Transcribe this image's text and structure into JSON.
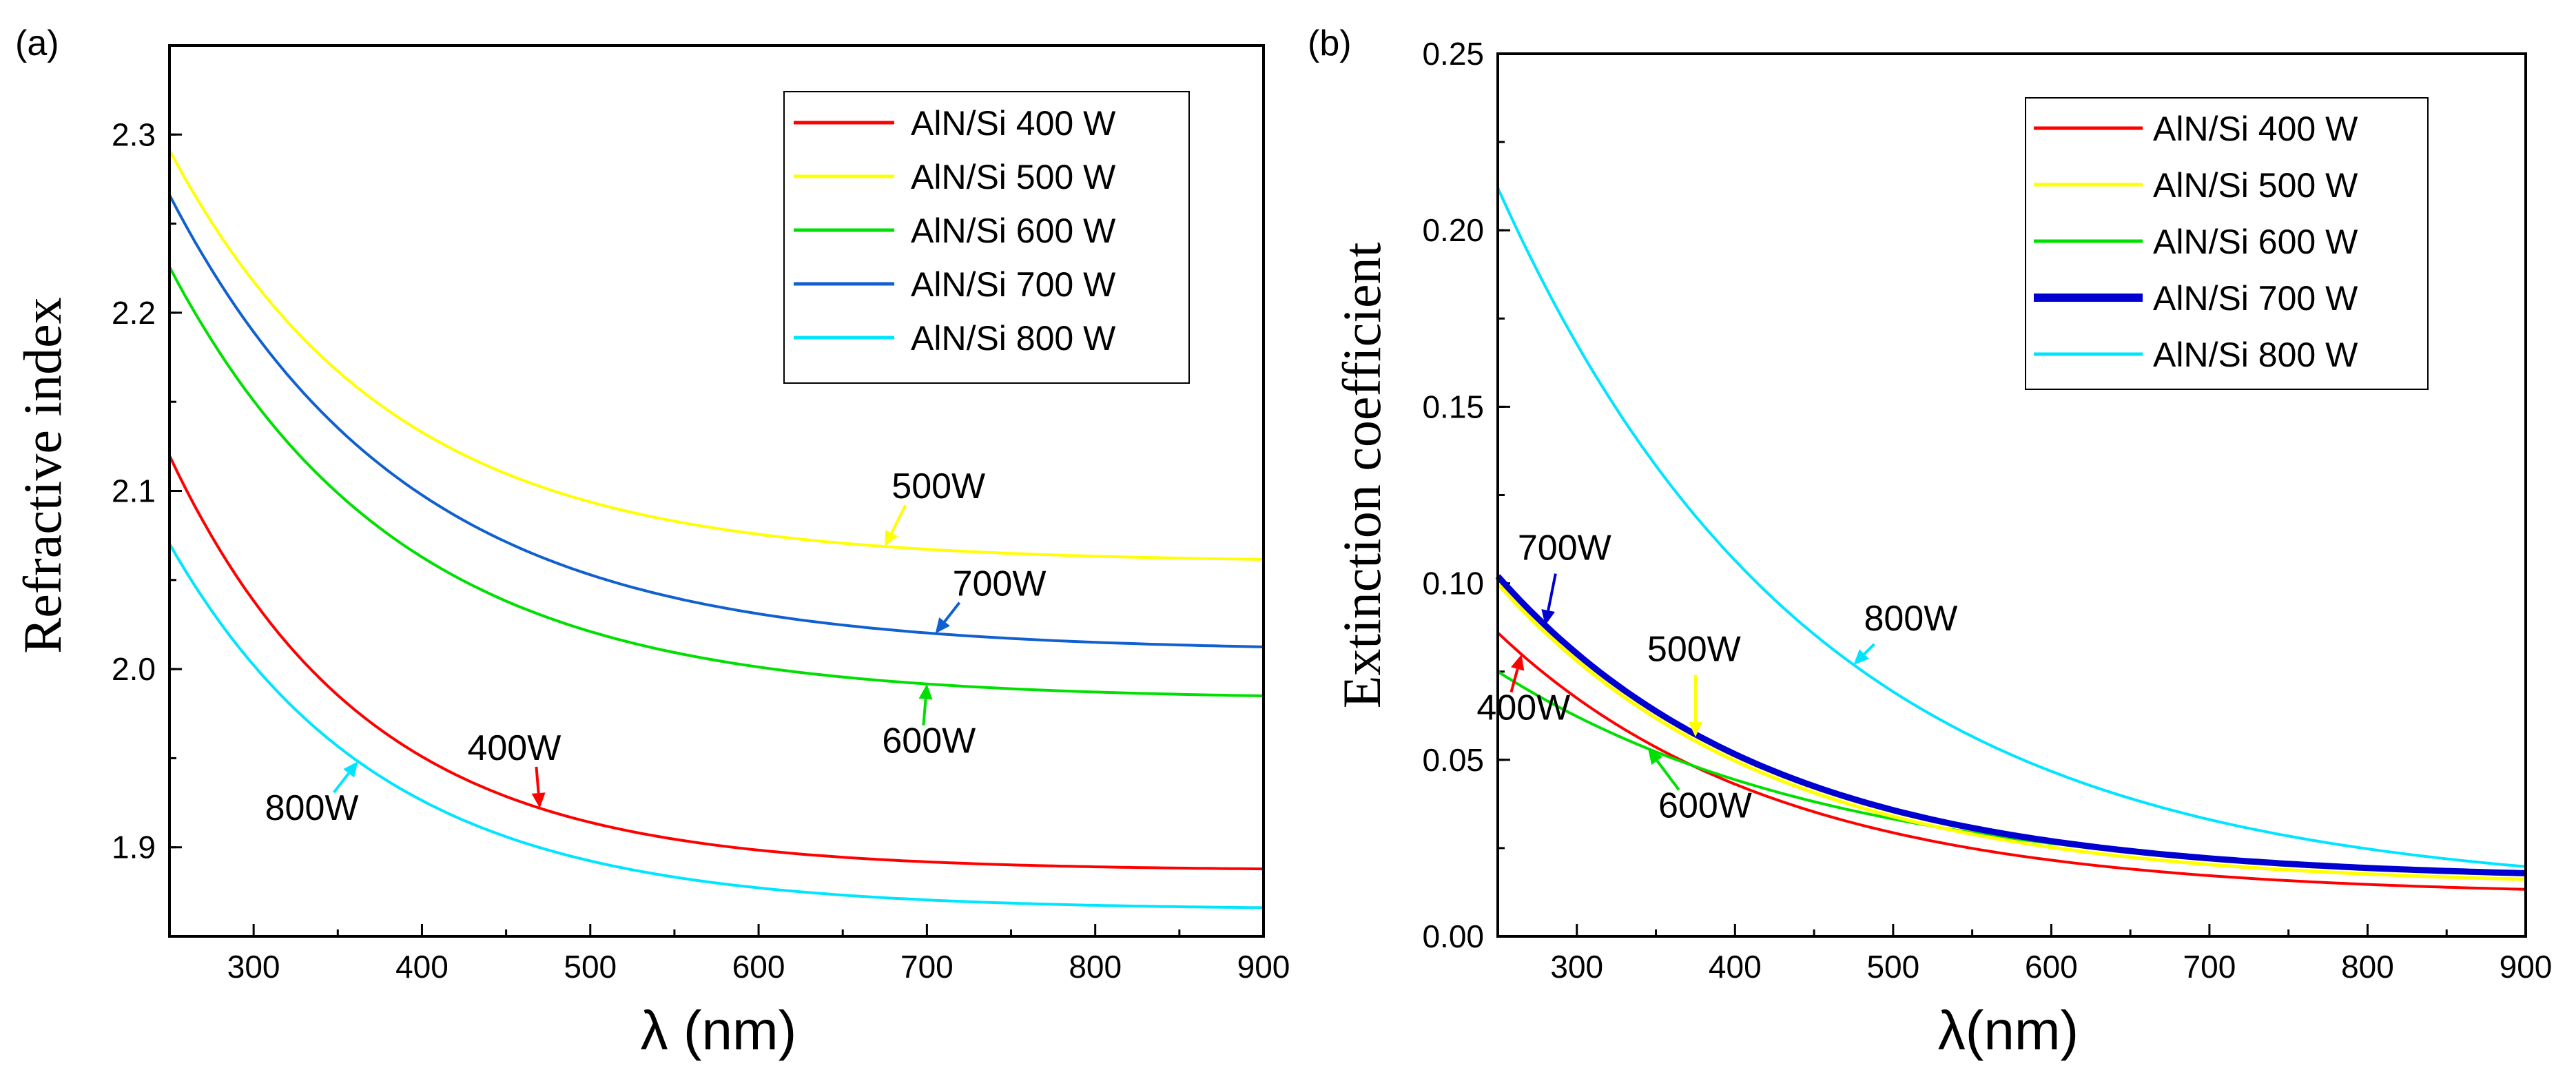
{
  "chart_data": [
    {
      "panel_label": "(a)",
      "type": "line",
      "xlabel": "λ (nm)",
      "ylabel": "Refractive index",
      "xlim": [
        250,
        900
      ],
      "ylim": [
        1.85,
        2.35
      ],
      "xticks": [
        300,
        400,
        500,
        600,
        700,
        800,
        900
      ],
      "yticks": [
        1.9,
        2.0,
        2.1,
        2.2,
        2.3
      ],
      "ytick_labels": [
        "1.9",
        "2.0",
        "2.1",
        "2.2",
        "2.3"
      ],
      "legend_position": "top-right",
      "series": [
        {
          "name": "AlN/Si 400 W",
          "color": "#ff0000",
          "A": 1.887,
          "B": 0.2328,
          "tau": 116
        },
        {
          "name": "AlN/Si 500 W",
          "color": "#ffff00",
          "A": 2.06,
          "B": 0.2313,
          "tau": 130
        },
        {
          "name": "AlN/Si 600 W",
          "color": "#00e000",
          "A": 1.983,
          "B": 0.2427,
          "tau": 135
        },
        {
          "name": "AlN/Si 700 W",
          "color": "#1060d0",
          "A": 2.01,
          "B": 0.2561,
          "tau": 140
        },
        {
          "name": "AlN/Si 800 W",
          "color": "#00e5ff",
          "A": 1.865,
          "B": 0.2053,
          "tau": 124
        }
      ],
      "annotations": [
        {
          "text": "500W",
          "at_series": 1,
          "x": 675
        },
        {
          "text": "700W",
          "at_series": 3,
          "x": 705
        },
        {
          "text": "600W",
          "at_series": 2,
          "x": 700
        },
        {
          "text": "400W",
          "at_series": 0,
          "x": 470
        },
        {
          "text": "800W",
          "at_series": 4,
          "x": 362
        }
      ]
    },
    {
      "panel_label": "(b)",
      "type": "line",
      "xlabel": "λ(nm)",
      "ylabel": "Extinction coefficient",
      "xlim": [
        250,
        900
      ],
      "ylim": [
        0.0,
        0.25
      ],
      "xticks": [
        300,
        400,
        500,
        600,
        700,
        800,
        900
      ],
      "yticks": [
        0.0,
        0.05,
        0.1,
        0.15,
        0.2,
        0.25
      ],
      "ytick_labels": [
        "0.00",
        "0.05",
        "0.10",
        "0.15",
        "0.20",
        "0.25"
      ],
      "legend_position": "top-right",
      "series": [
        {
          "name": "AlN/Si 400 W",
          "color": "#ff0000",
          "A": 0.0115,
          "B": 0.0745,
          "tau": 175
        },
        {
          "name": "AlN/Si 500 W",
          "color": "#ffff00",
          "A": 0.0155,
          "B": 0.0855,
          "tau": 170
        },
        {
          "name": "AlN/Si 600 W",
          "color": "#00e000",
          "A": 0.015,
          "B": 0.06,
          "tau": 210
        },
        {
          "name": "AlN/Si 700 W",
          "color": "#0000d0",
          "A": 0.016,
          "B": 0.086,
          "tau": 170
        },
        {
          "name": "AlN/Si 800 W",
          "color": "#00e5ff",
          "A": 0.012,
          "B": 0.2,
          "tau": 200
        }
      ],
      "annotations": [
        {
          "text": "700W",
          "at_series": 3,
          "x": 280
        },
        {
          "text": "400W",
          "at_series": 0,
          "x": 265
        },
        {
          "text": "500W",
          "at_series": 1,
          "x": 375
        },
        {
          "text": "600W",
          "at_series": 2,
          "x": 345
        },
        {
          "text": "800W",
          "at_series": 4,
          "x": 475
        }
      ]
    }
  ]
}
